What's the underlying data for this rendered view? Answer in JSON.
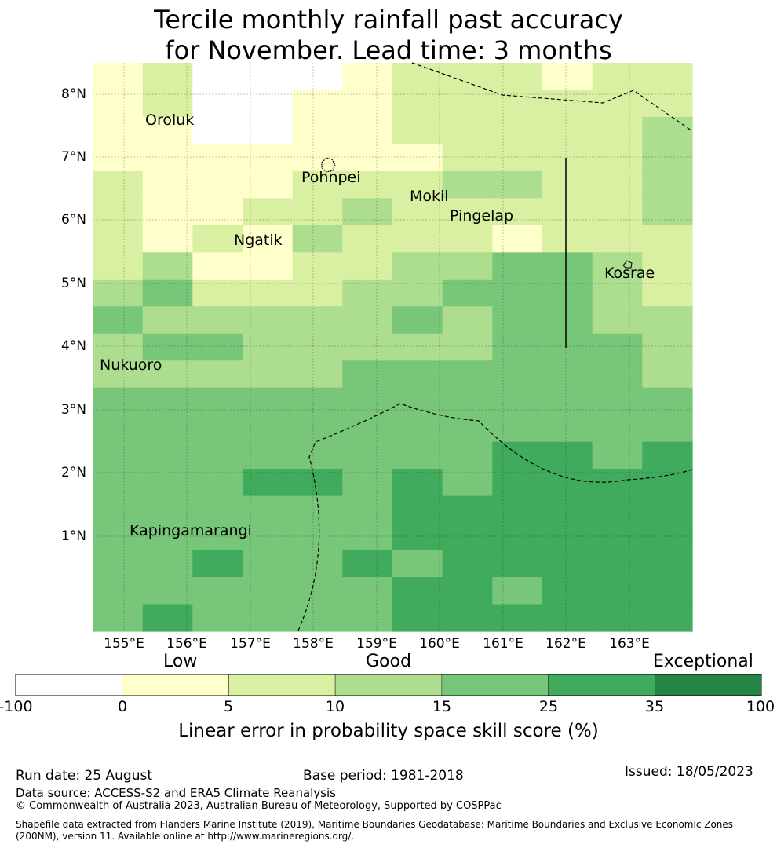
{
  "title_line1": "Tercile monthly rainfall past accuracy",
  "title_line2": "for November. Lead time: 3 months",
  "map": {
    "lat_ticks": [
      "8°N",
      "7°N",
      "6°N",
      "5°N",
      "4°N",
      "3°N",
      "2°N",
      "1°N"
    ],
    "lon_ticks": [
      "155°E",
      "156°E",
      "157°E",
      "158°E",
      "159°E",
      "160°E",
      "161°E",
      "162°E",
      "163°E"
    ],
    "places": [
      {
        "id": "oroluk",
        "name": "Oroluk"
      },
      {
        "id": "pohnpei",
        "name": "Pohnpei"
      },
      {
        "id": "mokil",
        "name": "Mokil"
      },
      {
        "id": "pingelap",
        "name": "Pingelap"
      },
      {
        "id": "ngatik",
        "name": "Ngatik"
      },
      {
        "id": "kosrae",
        "name": "Kosrae"
      },
      {
        "id": "nukuoro",
        "name": "Nukuoro"
      },
      {
        "id": "kapingamarangi",
        "name": "Kapingamarangi"
      }
    ],
    "color_levels": [
      "#ffffff",
      "#ffffcc",
      "#d9f0a3",
      "#addd8e",
      "#78c679",
      "#41ab5d",
      "#238443"
    ],
    "grid_rows": [
      [
        1,
        2,
        0,
        0,
        0,
        1,
        2,
        2,
        2,
        1,
        2,
        2
      ],
      [
        1,
        2,
        0,
        0,
        1,
        1,
        2,
        2,
        2,
        2,
        2,
        2
      ],
      [
        1,
        1,
        0,
        0,
        1,
        1,
        2,
        2,
        2,
        2,
        2,
        3
      ],
      [
        1,
        1,
        1,
        1,
        1,
        1,
        1,
        2,
        2,
        2,
        2,
        3
      ],
      [
        2,
        1,
        1,
        1,
        2,
        2,
        2,
        3,
        3,
        2,
        2,
        3
      ],
      [
        2,
        1,
        1,
        2,
        2,
        3,
        2,
        2,
        2,
        2,
        2,
        3
      ],
      [
        2,
        1,
        2,
        1,
        3,
        2,
        2,
        2,
        1,
        2,
        2,
        2
      ],
      [
        2,
        3,
        1,
        1,
        2,
        2,
        3,
        3,
        4,
        4,
        3,
        2
      ],
      [
        3,
        4,
        2,
        2,
        2,
        3,
        3,
        4,
        4,
        4,
        3,
        2
      ],
      [
        4,
        3,
        3,
        3,
        3,
        3,
        4,
        3,
        4,
        4,
        3,
        3
      ],
      [
        3,
        4,
        4,
        3,
        3,
        3,
        3,
        3,
        4,
        4,
        4,
        3
      ],
      [
        3,
        3,
        3,
        3,
        3,
        4,
        4,
        4,
        4,
        4,
        4,
        3
      ],
      [
        4,
        4,
        4,
        4,
        4,
        4,
        4,
        4,
        4,
        4,
        4,
        4
      ],
      [
        4,
        4,
        4,
        4,
        4,
        4,
        4,
        4,
        4,
        4,
        4,
        4
      ],
      [
        4,
        4,
        4,
        4,
        4,
        4,
        4,
        4,
        5,
        5,
        4,
        5
      ],
      [
        4,
        4,
        4,
        5,
        5,
        4,
        5,
        4,
        5,
        5,
        5,
        5
      ],
      [
        4,
        4,
        4,
        4,
        4,
        4,
        5,
        5,
        5,
        5,
        5,
        5
      ],
      [
        4,
        4,
        4,
        4,
        4,
        4,
        5,
        5,
        5,
        5,
        5,
        5
      ],
      [
        4,
        4,
        5,
        4,
        4,
        5,
        4,
        5,
        5,
        5,
        5,
        5
      ],
      [
        4,
        4,
        4,
        4,
        4,
        4,
        5,
        5,
        4,
        5,
        5,
        5
      ],
      [
        4,
        5,
        4,
        4,
        4,
        4,
        5,
        5,
        5,
        5,
        5,
        5
      ]
    ]
  },
  "colorbar": {
    "labels": [
      "Low",
      "Good",
      "Exceptional"
    ],
    "ticks": [
      "-100",
      "0",
      "5",
      "10",
      "15",
      "25",
      "35",
      "100"
    ],
    "colors": [
      "#ffffff",
      "#ffffcc",
      "#d9f0a3",
      "#addd8e",
      "#78c679",
      "#41ab5d",
      "#238443"
    ],
    "title": "Linear error in probability space skill score (%)"
  },
  "footer": {
    "run_date": "Run date: 25 August",
    "base_period": "Base period: 1981-2018",
    "issued": "Issued: 18/05/2023",
    "data_source": "Data source: ACCESS-S2 and ERA5 Climate Reanalysis",
    "copyright": "© Commonwealth of Australia 2023, Australian Bureau of Meteorology, Supported by COSPPac",
    "shapefile_line1": "Shapefile data extracted from Flanders Marine Institute (2019), Maritime Boundaries Geodatabase: Maritime Boundaries and Exclusive Economic Zones",
    "shapefile_line2": "(200NM), version 11. Available online at http://www.marineregions.org/."
  }
}
